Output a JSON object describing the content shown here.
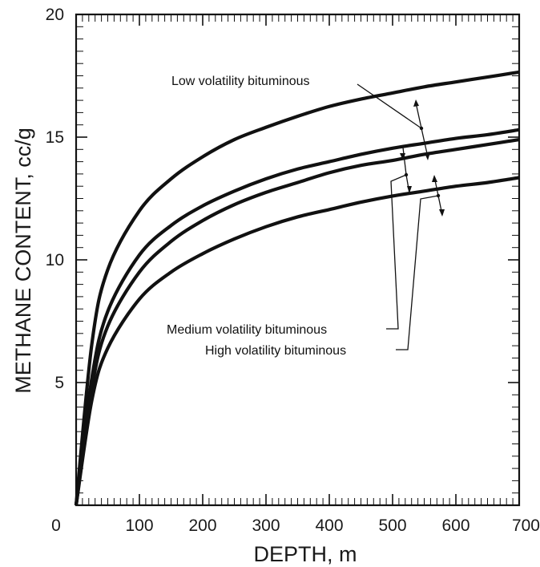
{
  "chart_data": {
    "type": "line",
    "title": "",
    "xlabel": "DEPTH, m",
    "ylabel": "METHANE CONTENT, cc/g",
    "xlim": [
      0,
      700
    ],
    "ylim": [
      0,
      20
    ],
    "x_ticks": [
      0,
      100,
      200,
      300,
      400,
      500,
      600,
      700
    ],
    "x_tick_labels": [
      "0",
      "100",
      "200",
      "300",
      "400",
      "500",
      "600",
      "700"
    ],
    "y_ticks": [
      5,
      10,
      15,
      20
    ],
    "y_tick_labels": [
      "5",
      "10",
      "15",
      "20"
    ],
    "grid": false,
    "x": [
      0,
      25,
      50,
      100,
      150,
      200,
      250,
      300,
      350,
      400,
      450,
      500,
      550,
      600,
      650,
      700
    ],
    "series": [
      {
        "values": [
          0,
          6.6,
          9.6,
          12.0,
          13.3,
          14.2,
          14.9,
          15.4,
          15.85,
          16.25,
          16.55,
          16.8,
          17.05,
          17.25,
          17.45,
          17.65
        ]
      },
      {
        "values": [
          0,
          5.2,
          7.9,
          10.2,
          11.4,
          12.2,
          12.8,
          13.3,
          13.7,
          14.0,
          14.3,
          14.55,
          14.75,
          14.95,
          15.1,
          15.3
        ]
      },
      {
        "values": [
          0,
          4.8,
          7.3,
          9.5,
          10.75,
          11.6,
          12.25,
          12.75,
          13.15,
          13.55,
          13.85,
          14.05,
          14.3,
          14.5,
          14.7,
          14.9
        ]
      },
      {
        "values": [
          0,
          4.3,
          6.4,
          8.4,
          9.5,
          10.25,
          10.85,
          11.35,
          11.75,
          12.05,
          12.35,
          12.6,
          12.8,
          13.0,
          13.15,
          13.35
        ]
      }
    ],
    "annotations": [
      {
        "text": "Low volatility bituminous"
      },
      {
        "text": "Medium volatility bituminous"
      },
      {
        "text": "High volatility bituminous"
      }
    ],
    "colors": {
      "line": "#111111",
      "axis": "#111111",
      "background": "#ffffff"
    }
  }
}
